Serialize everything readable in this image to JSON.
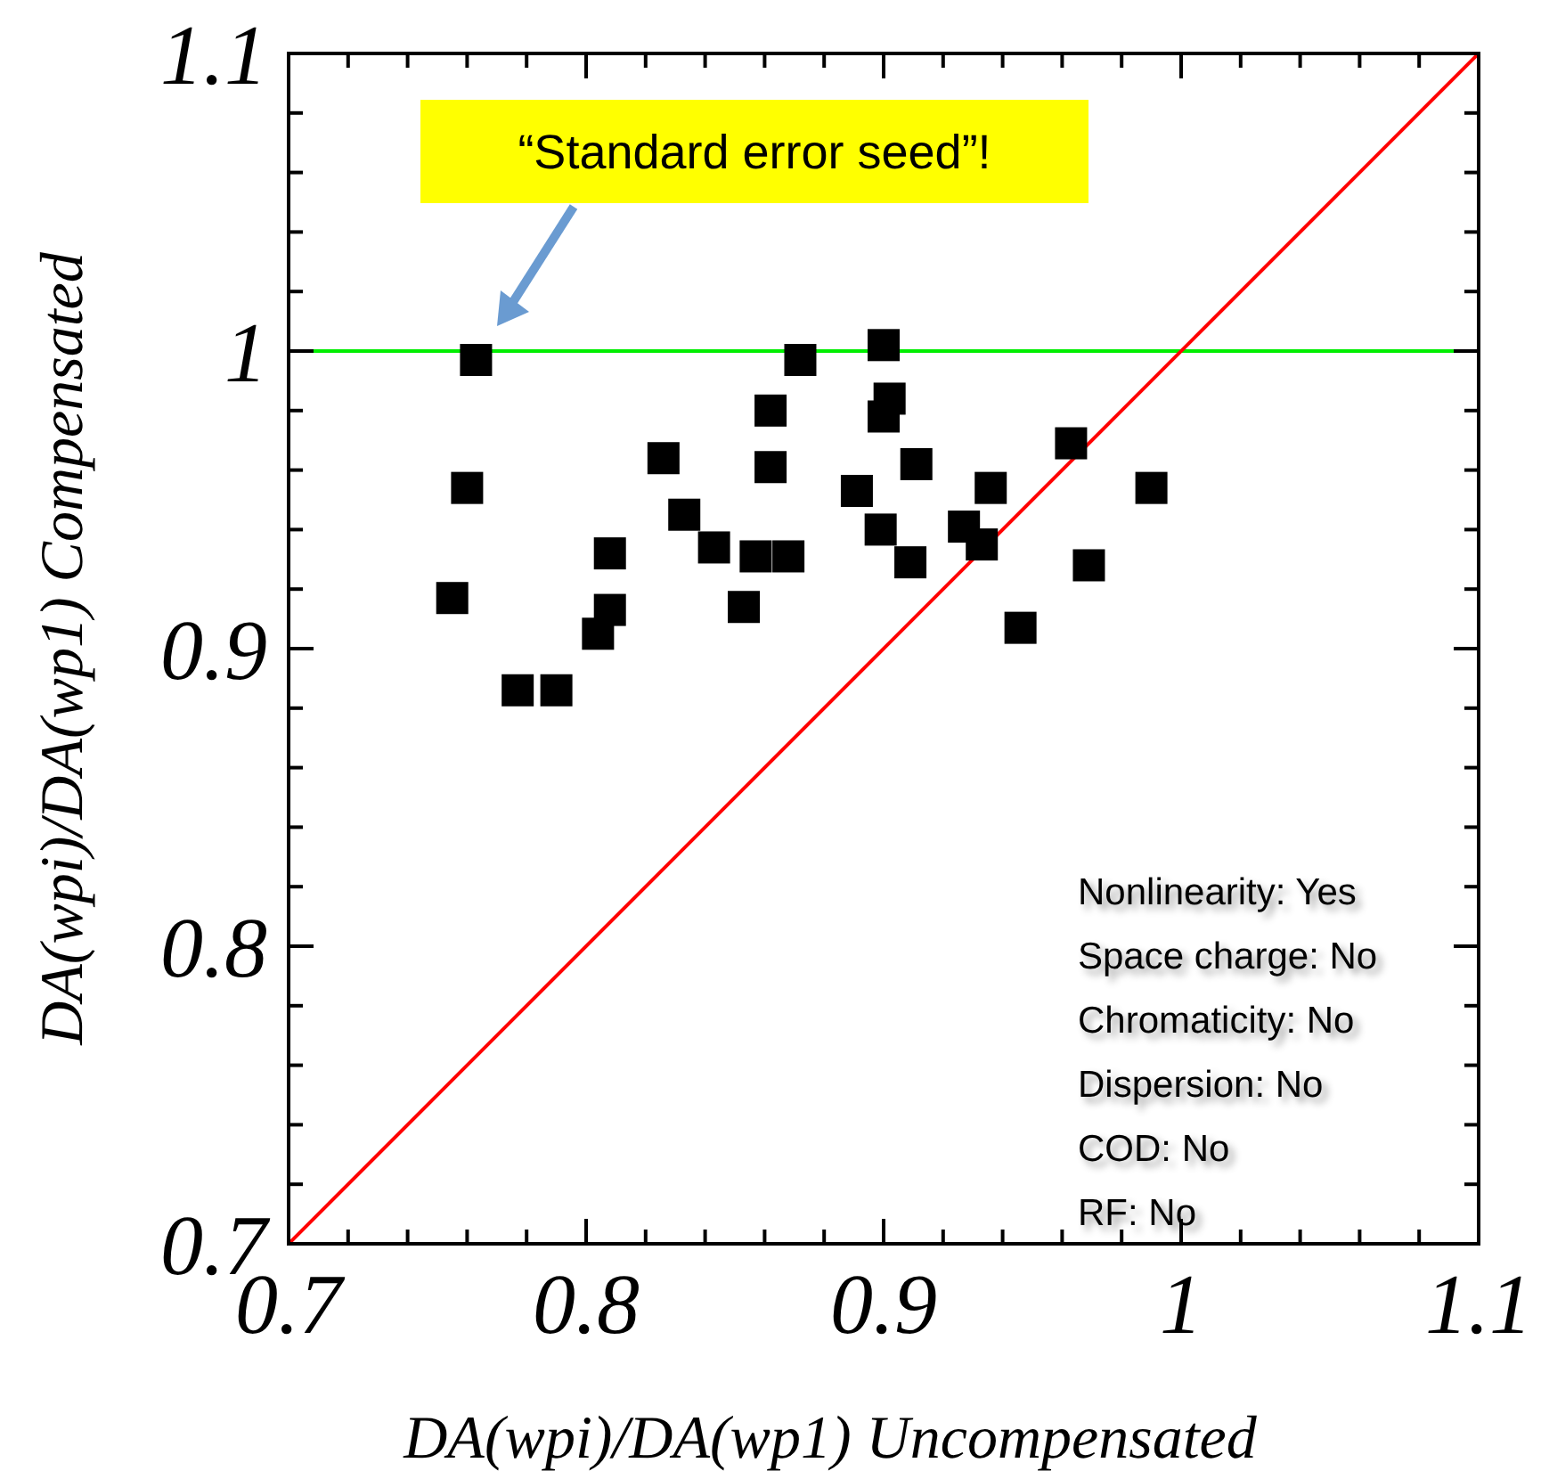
{
  "chart_data": {
    "type": "scatter",
    "xlabel": "DA(wpi)/DA(wp1) Uncompensated",
    "ylabel": "DA(wpi)/DA(wp1) Compensated",
    "xlim": [
      0.7,
      1.1
    ],
    "ylim": [
      0.7,
      1.1
    ],
    "xticks": [
      {
        "value": 0.7,
        "label": "0.7"
      },
      {
        "value": 0.72,
        "label": null
      },
      {
        "value": 0.74,
        "label": null
      },
      {
        "value": 0.76,
        "label": null
      },
      {
        "value": 0.78,
        "label": null
      },
      {
        "value": 0.8,
        "label": "0.8"
      },
      {
        "value": 0.82,
        "label": null
      },
      {
        "value": 0.84,
        "label": null
      },
      {
        "value": 0.86,
        "label": null
      },
      {
        "value": 0.88,
        "label": null
      },
      {
        "value": 0.9,
        "label": "0.9"
      },
      {
        "value": 0.92,
        "label": null
      },
      {
        "value": 0.94,
        "label": null
      },
      {
        "value": 0.96,
        "label": null
      },
      {
        "value": 0.98,
        "label": null
      },
      {
        "value": 1,
        "label": "1"
      },
      {
        "value": 1.02,
        "label": null
      },
      {
        "value": 1.04,
        "label": null
      },
      {
        "value": 1.06,
        "label": null
      },
      {
        "value": 1.08,
        "label": null
      },
      {
        "value": 1.1,
        "label": "1.1"
      }
    ],
    "yticks": [
      {
        "value": 0.7,
        "label": "0.7"
      },
      {
        "value": 0.72,
        "label": null
      },
      {
        "value": 0.74,
        "label": null
      },
      {
        "value": 0.76,
        "label": null
      },
      {
        "value": 0.78,
        "label": null
      },
      {
        "value": 0.8,
        "label": "0.8"
      },
      {
        "value": 0.82,
        "label": null
      },
      {
        "value": 0.84,
        "label": null
      },
      {
        "value": 0.86,
        "label": null
      },
      {
        "value": 0.88,
        "label": null
      },
      {
        "value": 0.9,
        "label": "0.9"
      },
      {
        "value": 0.92,
        "label": null
      },
      {
        "value": 0.94,
        "label": null
      },
      {
        "value": 0.96,
        "label": null
      },
      {
        "value": 0.98,
        "label": null
      },
      {
        "value": 1,
        "label": "1"
      },
      {
        "value": 1.02,
        "label": null
      },
      {
        "value": 1.04,
        "label": null
      },
      {
        "value": 1.06,
        "label": null
      },
      {
        "value": 1.08,
        "label": null
      },
      {
        "value": 1.1,
        "label": "1.1"
      }
    ],
    "series": [
      {
        "marker": "square",
        "color": "#000000",
        "x": [
          0.755,
          0.76,
          0.763,
          0.777,
          0.79,
          0.804,
          0.808,
          0.808,
          0.826,
          0.833,
          0.843,
          0.853,
          0.857,
          0.862,
          0.862,
          0.868,
          0.872,
          0.891,
          0.899,
          0.9,
          0.9,
          0.902,
          0.911,
          0.909,
          0.927,
          0.933,
          0.936,
          0.946,
          0.963,
          0.969,
          0.99
        ],
        "values": [
          0.917,
          0.954,
          0.997,
          0.886,
          0.886,
          0.905,
          0.913,
          0.932,
          0.964,
          0.945,
          0.934,
          0.914,
          0.931,
          0.961,
          0.98,
          0.931,
          0.997,
          0.953,
          0.94,
          1.002,
          0.978,
          0.984,
          0.962,
          0.929,
          0.941,
          0.935,
          0.954,
          0.907,
          0.969,
          0.928,
          0.954
        ]
      },
      {
        "type": "line",
        "color": "#ff0000",
        "x": [
          0.7,
          1.1
        ],
        "values": [
          0.7,
          1.1
        ]
      }
    ],
    "ref_lines": [
      {
        "axis": "y",
        "value": 1,
        "color": "#00ee00"
      }
    ],
    "annotations": [
      "“Standard error seed”!",
      "Nonlinearity: Yes",
      "Space charge: No",
      "Chromaticity: No",
      "Dispersion: No",
      "COD: No",
      "RF: No"
    ]
  }
}
